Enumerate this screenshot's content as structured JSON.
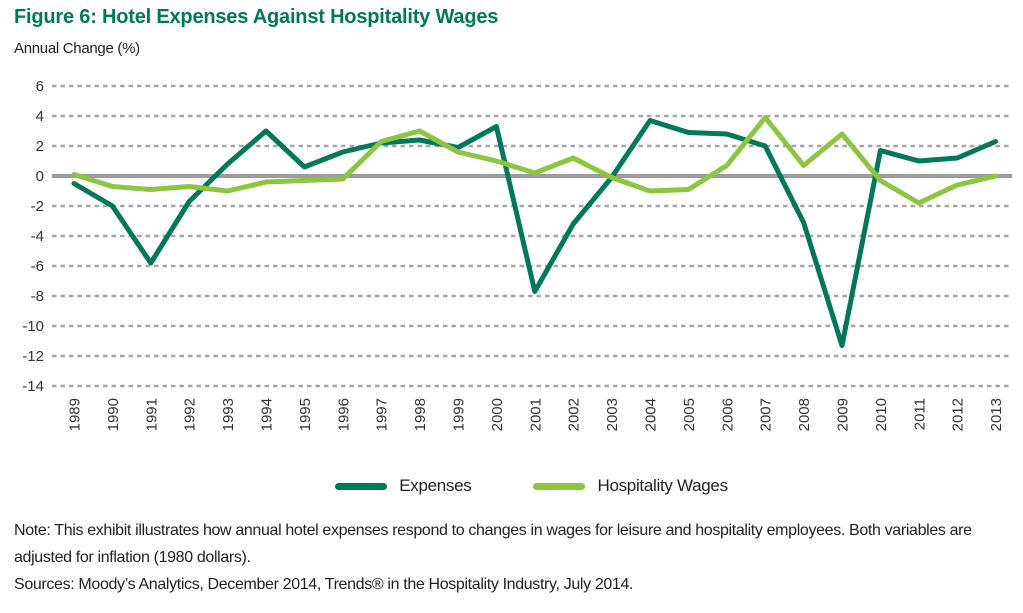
{
  "title": "Figure 6: Hotel Expenses Against Hospitality Wages",
  "y_axis_label": "Annual Change (%)",
  "legend": [
    {
      "label": "Expenses",
      "color": "#00795B"
    },
    {
      "label": "Hospitality Wages",
      "color": "#8CC63E"
    }
  ],
  "note": "Note: This exhibit illustrates how annual hotel expenses respond to changes in wages for leisure and hospitality employees.  Both variables are adjusted for inflation (1980 dollars).",
  "sources": "Sources: Moody’s Analytics, December 2014, Trends® in the Hospitality Industry, July 2014.",
  "colors": {
    "title": "#00795B",
    "expenses_line": "#00795B",
    "wages_line": "#8CC63E",
    "gridline": "#A6A6A6",
    "zero_line": "#9C9C9C",
    "tick_text": "#333333"
  },
  "chart_data": {
    "type": "line",
    "title": "Figure 6: Hotel Expenses Against Hospitality Wages",
    "xlabel": "",
    "ylabel": "Annual Change (%)",
    "x": [
      1989,
      1990,
      1991,
      1992,
      1993,
      1994,
      1995,
      1996,
      1997,
      1998,
      1999,
      2000,
      2001,
      2002,
      2003,
      2004,
      2005,
      2006,
      2007,
      2008,
      2009,
      2010,
      2011,
      2012,
      2013
    ],
    "series": [
      {
        "name": "Expenses",
        "color": "#00795B",
        "values": [
          -0.5,
          -2.0,
          -5.8,
          -1.7,
          0.8,
          3.0,
          0.6,
          1.6,
          2.2,
          2.4,
          1.9,
          3.3,
          -7.7,
          -3.2,
          -0.1,
          3.7,
          2.9,
          2.8,
          2.0,
          -3.1,
          -11.3,
          1.7,
          1.0,
          1.2,
          2.3
        ]
      },
      {
        "name": "Hospitality Wages",
        "color": "#8CC63E",
        "values": [
          0.1,
          -0.7,
          -0.9,
          -0.7,
          -1.0,
          -0.4,
          -0.3,
          -0.2,
          2.3,
          3.0,
          1.6,
          1.0,
          0.2,
          1.2,
          -0.1,
          -1.0,
          -0.9,
          0.7,
          3.9,
          0.7,
          2.8,
          -0.3,
          -1.8,
          -0.6,
          0.0
        ]
      }
    ],
    "yticks": [
      6,
      4,
      2,
      0,
      -2,
      -4,
      -6,
      -8,
      -10,
      -12,
      -14
    ],
    "ylim": [
      -14,
      6
    ],
    "grid": "horizontal dotted, solid line at zero",
    "legend_position": "bottom"
  }
}
